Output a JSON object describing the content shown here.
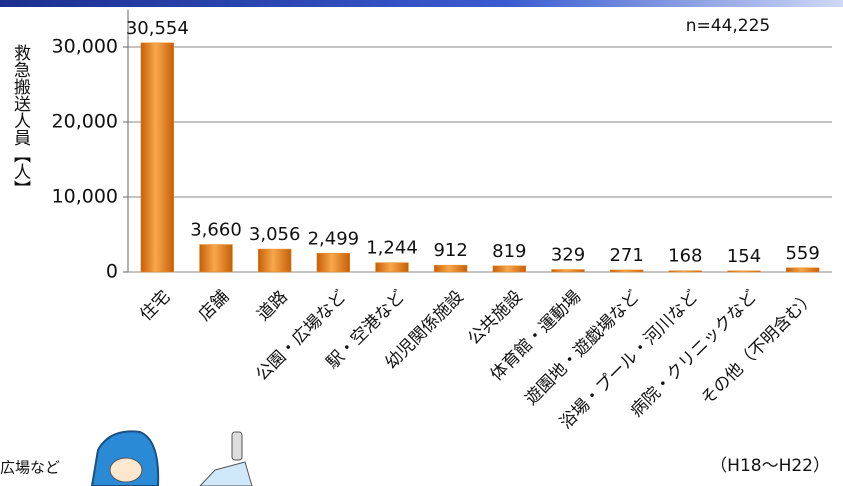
{
  "chart_data": {
    "type": "bar",
    "y_label": "救急搬送人員【人】",
    "annotation": "n=44,225",
    "note": "（H18～H22）",
    "caption_fragment": "広場など",
    "categories": [
      "住宅",
      "店舗",
      "道路",
      "公園・広場など",
      "駅・空港など",
      "幼児関係施設",
      "公共施設",
      "体育館・運動場",
      "遊園地・遊戯場など",
      "浴場・プール・河川など",
      "病院・クリニックなど",
      "その他（不明含む）"
    ],
    "values": [
      30554,
      3660,
      3056,
      2499,
      1244,
      912,
      819,
      329,
      271,
      168,
      154,
      559
    ],
    "value_labels": [
      "30,554",
      "3,660",
      "3,056",
      "2,499",
      "1,244",
      "912",
      "819",
      "329",
      "271",
      "168",
      "154",
      "559"
    ],
    "color": "#e8871e",
    "ylim": [
      0,
      35000
    ],
    "yticks": [
      0,
      {
        "value": 10000,
        "label": "10,000"
      },
      {
        "value": 20000,
        "label": "20,000"
      },
      {
        "value": 30000,
        "label": "30,000"
      }
    ],
    "grid": true
  }
}
